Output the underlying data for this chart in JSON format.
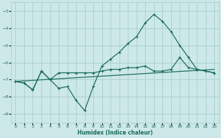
{
  "title": "",
  "xlabel": "Humidex (Indice chaleur)",
  "ylabel": "",
  "xlim": [
    -0.5,
    23.5
  ],
  "ylim": [
    -9.5,
    -2.5
  ],
  "yticks": [
    -9,
    -8,
    -7,
    -6,
    -5,
    -4,
    -3
  ],
  "xticks": [
    0,
    1,
    2,
    3,
    4,
    5,
    6,
    7,
    8,
    9,
    10,
    11,
    12,
    13,
    14,
    15,
    16,
    17,
    18,
    19,
    20,
    21,
    22,
    23
  ],
  "bg_color": "#cce8e8",
  "grid_color": "#aacccc",
  "line_color": "#1a6b5a",
  "line1_x": [
    0,
    1,
    2,
    3,
    4,
    5,
    6,
    7,
    8,
    9,
    10,
    11,
    12,
    13,
    14,
    15,
    16,
    17,
    18,
    19,
    20,
    21,
    22,
    23
  ],
  "line1_y": [
    -7.1,
    -7.2,
    -7.6,
    -6.5,
    -7.0,
    -7.5,
    -7.4,
    -8.2,
    -8.8,
    -7.4,
    -6.2,
    -5.8,
    -5.4,
    -4.9,
    -4.5,
    -3.7,
    -3.2,
    -3.6,
    -4.2,
    -5.0,
    -5.7,
    -6.4,
    -6.5,
    -6.6
  ],
  "line2_x": [
    0,
    1,
    2,
    3,
    4,
    5,
    6,
    7,
    8,
    9,
    10,
    11,
    12,
    13,
    14,
    15,
    16,
    17,
    18,
    19,
    20,
    21,
    22,
    23
  ],
  "line2_y": [
    -7.1,
    -7.2,
    -7.6,
    -6.5,
    -7.0,
    -6.6,
    -6.6,
    -6.6,
    -6.6,
    -6.6,
    -6.5,
    -6.4,
    -6.4,
    -6.3,
    -6.3,
    -6.2,
    -6.5,
    -6.5,
    -6.4,
    -5.7,
    -6.3,
    -6.4,
    -6.5,
    -6.6
  ],
  "line3_x": [
    0,
    23
  ],
  "line3_y": [
    -7.1,
    -6.4
  ]
}
